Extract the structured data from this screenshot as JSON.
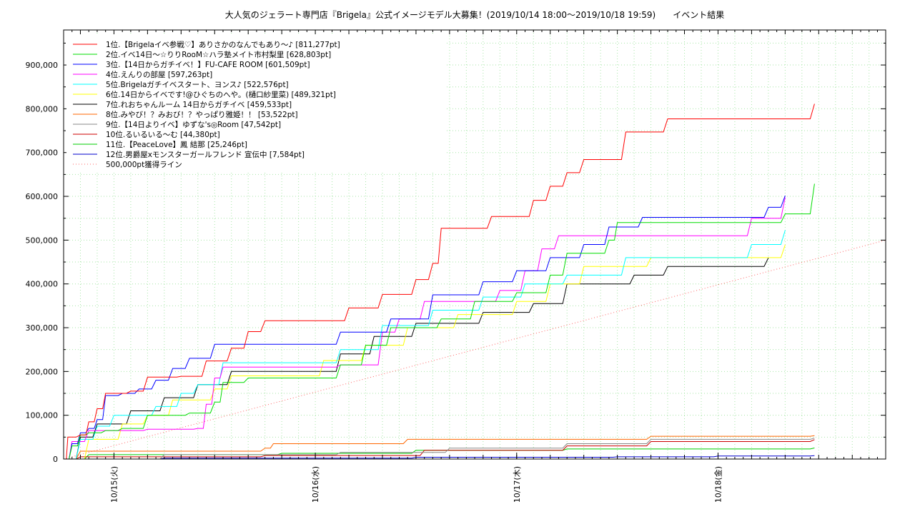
{
  "chart_data": {
    "type": "line",
    "title": "大人気のジェラート専門店『Brigela』公式イメージモデル大募集！(2019/10/14 18:00〜2019/10/18 19:59)　　イベント結果",
    "xlabel": "",
    "ylabel": "",
    "x_range": [
      "2019/10/14 18:00",
      "2019/10/18 19:59"
    ],
    "x_ticks": [
      {
        "label": "10/15(火)",
        "time": "2019/10/15 00:00"
      },
      {
        "label": "10/16(水)",
        "time": "2019/10/16 00:00"
      },
      {
        "label": "10/17(木)",
        "time": "2019/10/17 00:00"
      },
      {
        "label": "10/18(金)",
        "time": "2019/10/18 00:00"
      }
    ],
    "y_range": [
      0,
      980000
    ],
    "y_ticks": [
      {
        "value": 0,
        "label": "0"
      },
      {
        "value": 100000,
        "label": "100,000"
      },
      {
        "value": 200000,
        "label": "200,000"
      },
      {
        "value": 300000,
        "label": "300,000"
      },
      {
        "value": 400000,
        "label": "400,000"
      },
      {
        "value": 500000,
        "label": "500,000"
      },
      {
        "value": 600000,
        "label": "600,000"
      },
      {
        "value": 700000,
        "label": "700,000"
      },
      {
        "value": 800000,
        "label": "800,000"
      },
      {
        "value": 900000,
        "label": "900,000"
      }
    ],
    "grid": true,
    "legend_position": "top-left",
    "series": [
      {
        "name": "1位.【Brigelaイベ参戦♡】ありさかのなんでもあり〜♪ [811,277pt]",
        "color": "#ff0000",
        "style": "solid",
        "points": [
          [
            "2019/10/14 18:00",
            0
          ],
          [
            "2019/10/14 18:30",
            50000
          ],
          [
            "2019/10/14 20:00",
            55000
          ],
          [
            "2019/10/14 21:00",
            85000
          ],
          [
            "2019/10/14 22:00",
            115000
          ],
          [
            "2019/10/14 23:00",
            150000
          ],
          [
            "2019/10/15 02:00",
            155000
          ],
          [
            "2019/10/15 04:00",
            187000
          ],
          [
            "2019/10/15 08:00",
            189000
          ],
          [
            "2019/10/15 11:00",
            224000
          ],
          [
            "2019/10/15 14:00",
            253000
          ],
          [
            "2019/10/15 16:00",
            291000
          ],
          [
            "2019/10/15 18:00",
            316000
          ],
          [
            "2019/10/16 04:00",
            345000
          ],
          [
            "2019/10/16 08:00",
            376000
          ],
          [
            "2019/10/16 12:00",
            410000
          ],
          [
            "2019/10/16 14:00",
            447000
          ],
          [
            "2019/10/16 15:00",
            527000
          ],
          [
            "2019/10/16 21:00",
            554000
          ],
          [
            "2019/10/17 02:00",
            591000
          ],
          [
            "2019/10/17 04:00",
            623000
          ],
          [
            "2019/10/17 06:00",
            654000
          ],
          [
            "2019/10/17 08:00",
            684000
          ],
          [
            "2019/10/17 13:00",
            747000
          ],
          [
            "2019/10/17 18:00",
            777000
          ],
          [
            "2019/10/18 11:30",
            811277
          ]
        ]
      },
      {
        "name": "2位.イベ14日〜☆りりRooM☆ハラ塾メイト市村梨里 [628,803pt]",
        "color": "#00dd00",
        "style": "solid",
        "points": [
          [
            "2019/10/14 18:00",
            0
          ],
          [
            "2019/10/14 19:00",
            30000
          ],
          [
            "2019/10/14 20:00",
            55000
          ],
          [
            "2019/10/14 21:00",
            60000
          ],
          [
            "2019/10/14 23:00",
            65000
          ],
          [
            "2019/10/15 01:00",
            70000
          ],
          [
            "2019/10/15 04:00",
            100000
          ],
          [
            "2019/10/15 09:00",
            105000
          ],
          [
            "2019/10/15 12:00",
            130000
          ],
          [
            "2019/10/15 13:00",
            175000
          ],
          [
            "2019/10/15 16:00",
            185000
          ],
          [
            "2019/10/16 03:00",
            215000
          ],
          [
            "2019/10/16 06:00",
            260000
          ],
          [
            "2019/10/16 09:00",
            300000
          ],
          [
            "2019/10/16 15:00",
            320000
          ],
          [
            "2019/10/16 19:00",
            360000
          ],
          [
            "2019/10/17 00:00",
            380000
          ],
          [
            "2019/10/17 04:00",
            420000
          ],
          [
            "2019/10/17 06:00",
            470000
          ],
          [
            "2019/10/17 11:00",
            500000
          ],
          [
            "2019/10/17 12:00",
            540000
          ],
          [
            "2019/10/18 08:00",
            560000
          ],
          [
            "2019/10/18 11:30",
            628803
          ]
        ]
      },
      {
        "name": "3位.【14日からガチイベ！】FU-CAFE ROOM [601,509pt]",
        "color": "#0000ff",
        "style": "solid",
        "points": [
          [
            "2019/10/14 18:00",
            0
          ],
          [
            "2019/10/14 19:00",
            35000
          ],
          [
            "2019/10/14 20:00",
            60000
          ],
          [
            "2019/10/14 21:00",
            70000
          ],
          [
            "2019/10/14 22:00",
            90000
          ],
          [
            "2019/10/14 23:00",
            145000
          ],
          [
            "2019/10/15 01:00",
            150000
          ],
          [
            "2019/10/15 03:00",
            160000
          ],
          [
            "2019/10/15 05:00",
            180000
          ],
          [
            "2019/10/15 07:00",
            207000
          ],
          [
            "2019/10/15 09:00",
            230000
          ],
          [
            "2019/10/15 12:00",
            262000
          ],
          [
            "2019/10/16 03:00",
            290000
          ],
          [
            "2019/10/16 09:00",
            320000
          ],
          [
            "2019/10/16 14:00",
            375000
          ],
          [
            "2019/10/16 20:00",
            405000
          ],
          [
            "2019/10/17 00:00",
            430000
          ],
          [
            "2019/10/17 04:00",
            460000
          ],
          [
            "2019/10/17 08:00",
            490000
          ],
          [
            "2019/10/17 11:00",
            530000
          ],
          [
            "2019/10/17 15:00",
            552000
          ],
          [
            "2019/10/18 06:00",
            575000
          ],
          [
            "2019/10/18 08:00",
            601509
          ]
        ]
      },
      {
        "name": "4位.えんりの部屋 [597,263pt]",
        "color": "#ff00ff",
        "style": "solid",
        "points": [
          [
            "2019/10/14 18:00",
            0
          ],
          [
            "2019/10/14 19:00",
            40000
          ],
          [
            "2019/10/14 21:00",
            65000
          ],
          [
            "2019/10/15 04:00",
            68000
          ],
          [
            "2019/10/15 10:00",
            70000
          ],
          [
            "2019/10/15 11:00",
            125000
          ],
          [
            "2019/10/15 12:00",
            185000
          ],
          [
            "2019/10/15 13:00",
            210000
          ],
          [
            "2019/10/16 03:00",
            215000
          ],
          [
            "2019/10/16 08:00",
            290000
          ],
          [
            "2019/10/16 10:00",
            320000
          ],
          [
            "2019/10/16 13:00",
            360000
          ],
          [
            "2019/10/16 22:00",
            385000
          ],
          [
            "2019/10/17 01:00",
            430000
          ],
          [
            "2019/10/17 03:00",
            480000
          ],
          [
            "2019/10/17 05:00",
            510000
          ],
          [
            "2019/10/18 04:00",
            550000
          ],
          [
            "2019/10/18 08:00",
            597263
          ]
        ]
      },
      {
        "name": "5位.Brigelaガチイベスタート、ヨンス♪ [522,576pt]",
        "color": "#00ffff",
        "style": "solid",
        "points": [
          [
            "2019/10/14 18:00",
            0
          ],
          [
            "2019/10/14 20:00",
            45000
          ],
          [
            "2019/10/14 22:00",
            75000
          ],
          [
            "2019/10/15 00:00",
            100000
          ],
          [
            "2019/10/15 05:00",
            120000
          ],
          [
            "2019/10/15 08:00",
            150000
          ],
          [
            "2019/10/15 10:00",
            170000
          ],
          [
            "2019/10/15 13:00",
            220000
          ],
          [
            "2019/10/16 03:00",
            250000
          ],
          [
            "2019/10/16 08:00",
            305000
          ],
          [
            "2019/10/16 14:00",
            340000
          ],
          [
            "2019/10/16 20:00",
            370000
          ],
          [
            "2019/10/17 01:00",
            400000
          ],
          [
            "2019/10/17 06:00",
            420000
          ],
          [
            "2019/10/17 13:00",
            460000
          ],
          [
            "2019/10/18 04:00",
            490000
          ],
          [
            "2019/10/18 08:00",
            522576
          ]
        ]
      },
      {
        "name": "6位.14日からイベです!@ひぐちのへや。(樋口紗里菜) [489,321pt]",
        "color": "#ffff00",
        "style": "solid",
        "points": [
          [
            "2019/10/14 18:00",
            0
          ],
          [
            "2019/10/14 21:00",
            45000
          ],
          [
            "2019/10/15 01:00",
            80000
          ],
          [
            "2019/10/15 04:00",
            100000
          ],
          [
            "2019/10/15 07:00",
            135000
          ],
          [
            "2019/10/15 12:00",
            160000
          ],
          [
            "2019/10/15 14:00",
            190000
          ],
          [
            "2019/10/16 01:00",
            225000
          ],
          [
            "2019/10/16 06:00",
            260000
          ],
          [
            "2019/10/16 11:00",
            300000
          ],
          [
            "2019/10/16 17:00",
            330000
          ],
          [
            "2019/10/17 00:00",
            360000
          ],
          [
            "2019/10/17 04:00",
            400000
          ],
          [
            "2019/10/17 08:00",
            440000
          ],
          [
            "2019/10/17 16:00",
            460000
          ],
          [
            "2019/10/18 08:00",
            489321
          ]
        ]
      },
      {
        "name": "7位.れおちゃんルーム 14日からガチイベ [459,533pt]",
        "color": "#000000",
        "style": "solid",
        "points": [
          [
            "2019/10/14 18:00",
            0
          ],
          [
            "2019/10/14 20:00",
            50000
          ],
          [
            "2019/10/14 22:00",
            80000
          ],
          [
            "2019/10/15 02:00",
            110000
          ],
          [
            "2019/10/15 06:00",
            140000
          ],
          [
            "2019/10/15 10:00",
            170000
          ],
          [
            "2019/10/15 14:00",
            200000
          ],
          [
            "2019/10/16 03:00",
            240000
          ],
          [
            "2019/10/16 07:00",
            280000
          ],
          [
            "2019/10/16 12:00",
            310000
          ],
          [
            "2019/10/16 20:00",
            335000
          ],
          [
            "2019/10/17 02:00",
            355000
          ],
          [
            "2019/10/17 06:00",
            400000
          ],
          [
            "2019/10/17 14:00",
            420000
          ],
          [
            "2019/10/17 18:00",
            440000
          ],
          [
            "2019/10/18 06:00",
            459533
          ]
        ]
      },
      {
        "name": "8位.みやび！？みおび！？やっぱり雅姫！！ [53,522pt]",
        "color": "#ff6600",
        "style": "solid",
        "points": [
          [
            "2019/10/14 18:00",
            0
          ],
          [
            "2019/10/14 20:00",
            18000
          ],
          [
            "2019/10/15 18:00",
            25000
          ],
          [
            "2019/10/15 19:00",
            35000
          ],
          [
            "2019/10/16 11:00",
            45000
          ],
          [
            "2019/10/17 16:00",
            52000
          ],
          [
            "2019/10/18 11:30",
            53522
          ]
        ]
      },
      {
        "name": "9位.【14日よりイベ】ゆずな's◎Room [47,542pt]",
        "color": "#888888",
        "style": "solid",
        "points": [
          [
            "2019/10/14 18:00",
            0
          ],
          [
            "2019/10/15 06:00",
            10000
          ],
          [
            "2019/10/16 03:00",
            15000
          ],
          [
            "2019/10/16 16:00",
            25000
          ],
          [
            "2019/10/17 06:00",
            35000
          ],
          [
            "2019/10/17 16:00",
            45000
          ],
          [
            "2019/10/18 11:30",
            47542
          ]
        ]
      },
      {
        "name": "10位.るいるいる〜む [44,380pt]",
        "color": "#cc0000",
        "style": "solid",
        "points": [
          [
            "2019/10/14 18:00",
            0
          ],
          [
            "2019/10/14 20:00",
            5000
          ],
          [
            "2019/10/15 18:00",
            8000
          ],
          [
            "2019/10/16 13:00",
            20000
          ],
          [
            "2019/10/17 06:00",
            30000
          ],
          [
            "2019/10/17 16:00",
            40000
          ],
          [
            "2019/10/18 11:30",
            44380
          ]
        ]
      },
      {
        "name": "11位.【PeaceLove】鳳 結那 [25,246pt]",
        "color": "#00cc00",
        "style": "solid",
        "points": [
          [
            "2019/10/14 18:00",
            0
          ],
          [
            "2019/10/14 21:00",
            10000
          ],
          [
            "2019/10/15 20:00",
            13000
          ],
          [
            "2019/10/16 12:00",
            20000
          ],
          [
            "2019/10/17 06:00",
            23000
          ],
          [
            "2019/10/18 11:30",
            25246
          ]
        ]
      },
      {
        "name": "12位.男爵屋xモンスターガールフレンド 宣伝中 [7,584pt]",
        "color": "#0000cc",
        "style": "solid",
        "points": [
          [
            "2019/10/14 18:00",
            0
          ],
          [
            "2019/10/15 06:00",
            2000
          ],
          [
            "2019/10/16 12:00",
            4000
          ],
          [
            "2019/10/17 12:00",
            5000
          ],
          [
            "2019/10/18 00:00",
            7000
          ],
          [
            "2019/10/18 11:30",
            7584
          ]
        ]
      },
      {
        "name": "500,000pt獲得ライン",
        "color": "#ff6666",
        "style": "dotted",
        "points": [
          [
            "2019/10/14 18:00",
            0
          ],
          [
            "2019/10/18 19:59",
            500000
          ]
        ]
      }
    ]
  }
}
